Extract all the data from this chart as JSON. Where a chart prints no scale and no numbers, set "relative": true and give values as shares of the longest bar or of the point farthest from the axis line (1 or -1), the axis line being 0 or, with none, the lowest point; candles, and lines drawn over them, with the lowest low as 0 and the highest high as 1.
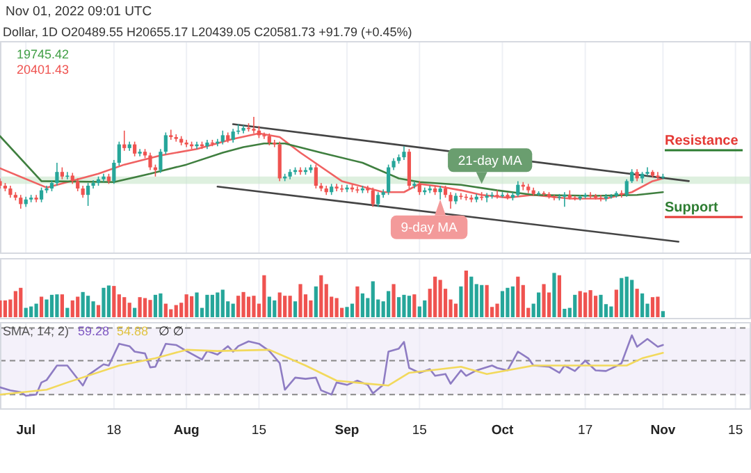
{
  "chart_data": [
    {
      "type": "candlestick",
      "title": "Nov 01, 2022 09:01 UTC",
      "subtitle": "Dollar, 1D  O20489.55  H20655.17  L20439.05  C20581.73  +91.79 (+0.45%)",
      "relative": true,
      "grid": "x",
      "tick_labels": false,
      "xlim": [
        "2022-06-26",
        "2022-11-18"
      ],
      "xticks": [
        {
          "value": "2022-07-01",
          "label": null
        },
        {
          "value": "2022-07-18",
          "label": null
        },
        {
          "value": "2022-08-01",
          "label": null
        },
        {
          "value": "2022-08-15",
          "label": null
        },
        {
          "value": "2022-09-01",
          "label": null
        },
        {
          "value": "2022-09-15",
          "label": null
        },
        {
          "value": "2022-10-01",
          "label": null
        },
        {
          "value": "2022-10-17",
          "label": null
        },
        {
          "value": "2022-11-01",
          "label": null
        },
        {
          "value": "2022-11-15",
          "label": null
        }
      ],
      "x": [
        "2022-06-26",
        "2022-06-27",
        "2022-06-28",
        "2022-06-29",
        "2022-06-30",
        "2022-07-01",
        "2022-07-02",
        "2022-07-03",
        "2022-07-04",
        "2022-07-05",
        "2022-07-06",
        "2022-07-07",
        "2022-07-08",
        "2022-07-09",
        "2022-07-10",
        "2022-07-11",
        "2022-07-12",
        "2022-07-13",
        "2022-07-14",
        "2022-07-15",
        "2022-07-16",
        "2022-07-17",
        "2022-07-18",
        "2022-07-19",
        "2022-07-20",
        "2022-07-21",
        "2022-07-22",
        "2022-07-23",
        "2022-07-24",
        "2022-07-25",
        "2022-07-26",
        "2022-07-27",
        "2022-07-28",
        "2022-07-29",
        "2022-07-30",
        "2022-07-31",
        "2022-08-01",
        "2022-08-02",
        "2022-08-03",
        "2022-08-04",
        "2022-08-05",
        "2022-08-06",
        "2022-08-07",
        "2022-08-08",
        "2022-08-09",
        "2022-08-10",
        "2022-08-11",
        "2022-08-12",
        "2022-08-13",
        "2022-08-14",
        "2022-08-15",
        "2022-08-16",
        "2022-08-17",
        "2022-08-18",
        "2022-08-19",
        "2022-08-20",
        "2022-08-21",
        "2022-08-22",
        "2022-08-23",
        "2022-08-24",
        "2022-08-25",
        "2022-08-26",
        "2022-08-27",
        "2022-08-28",
        "2022-08-29",
        "2022-08-30",
        "2022-08-31",
        "2022-09-01",
        "2022-09-02",
        "2022-09-03",
        "2022-09-04",
        "2022-09-05",
        "2022-09-06",
        "2022-09-07",
        "2022-09-08",
        "2022-09-09",
        "2022-09-10",
        "2022-09-11",
        "2022-09-12",
        "2022-09-13",
        "2022-09-14",
        "2022-09-15",
        "2022-09-16",
        "2022-09-17",
        "2022-09-18",
        "2022-09-19",
        "2022-09-20",
        "2022-09-21",
        "2022-09-22",
        "2022-09-23",
        "2022-09-24",
        "2022-09-25",
        "2022-09-26",
        "2022-09-27",
        "2022-09-28",
        "2022-09-29",
        "2022-09-30",
        "2022-10-01",
        "2022-10-02",
        "2022-10-03",
        "2022-10-04",
        "2022-10-05",
        "2022-10-06",
        "2022-10-07",
        "2022-10-08",
        "2022-10-09",
        "2022-10-10",
        "2022-10-11",
        "2022-10-12",
        "2022-10-13",
        "2022-10-14",
        "2022-10-15",
        "2022-10-16",
        "2022-10-17",
        "2022-10-18",
        "2022-10-19",
        "2022-10-20",
        "2022-10-21",
        "2022-10-22",
        "2022-10-23",
        "2022-10-24",
        "2022-10-25",
        "2022-10-26",
        "2022-10-27",
        "2022-10-28",
        "2022-10-29",
        "2022-10-30",
        "2022-10-31",
        "2022-11-01"
      ],
      "ohlc": [
        [
          0.3,
          0.33,
          0.22,
          0.25
        ],
        [
          0.25,
          0.28,
          0.19,
          0.22
        ],
        [
          0.22,
          0.25,
          0.12,
          0.15
        ],
        [
          0.15,
          0.18,
          0.09,
          0.12
        ],
        [
          0.12,
          0.15,
          0,
          0.05
        ],
        [
          0.05,
          0.13,
          0.02,
          0.1
        ],
        [
          0.1,
          0.15,
          0.07,
          0.12
        ],
        [
          0.12,
          0.15,
          0.07,
          0.1
        ],
        [
          0.1,
          0.23,
          0.07,
          0.2
        ],
        [
          0.2,
          0.25,
          0.17,
          0.22
        ],
        [
          0.22,
          0.31,
          0.19,
          0.28
        ],
        [
          0.28,
          0.5,
          0.25,
          0.4
        ],
        [
          0.4,
          0.45,
          0.32,
          0.35
        ],
        [
          0.35,
          0.4,
          0.32,
          0.36
        ],
        [
          0.36,
          0.39,
          0.27,
          0.3
        ],
        [
          0.3,
          0.33,
          0.19,
          0.22
        ],
        [
          0.22,
          0.25,
          0.12,
          0.15
        ],
        [
          0.15,
          0.28,
          0.03,
          0.25
        ],
        [
          0.25,
          0.31,
          0.22,
          0.28
        ],
        [
          0.28,
          0.35,
          0.25,
          0.32
        ],
        [
          0.32,
          0.38,
          0.29,
          0.35
        ],
        [
          0.35,
          0.38,
          0.27,
          0.3
        ],
        [
          0.3,
          0.53,
          0.27,
          0.5
        ],
        [
          0.5,
          0.73,
          0.47,
          0.7
        ],
        [
          0.7,
          0.85,
          0.63,
          0.66
        ],
        [
          0.66,
          0.73,
          0.63,
          0.7
        ],
        [
          0.7,
          0.73,
          0.57,
          0.6
        ],
        [
          0.6,
          0.65,
          0.57,
          0.62
        ],
        [
          0.62,
          0.65,
          0.55,
          0.58
        ],
        [
          0.58,
          0.61,
          0.42,
          0.45
        ],
        [
          0.45,
          0.48,
          0.35,
          0.42
        ],
        [
          0.42,
          0.65,
          0.39,
          0.62
        ],
        [
          0.62,
          0.83,
          0.59,
          0.8
        ],
        [
          0.8,
          0.86,
          0.75,
          0.78
        ],
        [
          0.78,
          0.81,
          0.73,
          0.76
        ],
        [
          0.76,
          0.79,
          0.69,
          0.72
        ],
        [
          0.72,
          0.75,
          0.67,
          0.7
        ],
        [
          0.7,
          0.73,
          0.65,
          0.68
        ],
        [
          0.68,
          0.73,
          0.65,
          0.7
        ],
        [
          0.7,
          0.73,
          0.65,
          0.68
        ],
        [
          0.68,
          0.75,
          0.65,
          0.72
        ],
        [
          0.72,
          0.75,
          0.68,
          0.71
        ],
        [
          0.71,
          0.76,
          0.68,
          0.73
        ],
        [
          0.73,
          0.85,
          0.7,
          0.8
        ],
        [
          0.8,
          0.83,
          0.72,
          0.75
        ],
        [
          0.75,
          0.87,
          0.72,
          0.84
        ],
        [
          0.84,
          0.92,
          0.81,
          0.85
        ],
        [
          0.85,
          0.91,
          0.82,
          0.88
        ],
        [
          0.88,
          0.93,
          0.84,
          0.87
        ],
        [
          0.87,
          1,
          0.82,
          0.85
        ],
        [
          0.85,
          0.9,
          0.77,
          0.8
        ],
        [
          0.8,
          0.83,
          0.76,
          0.79
        ],
        [
          0.79,
          0.82,
          0.69,
          0.72
        ],
        [
          0.72,
          0.75,
          0.67,
          0.7
        ],
        [
          0.7,
          0.73,
          0.3,
          0.33
        ],
        [
          0.33,
          0.38,
          0.3,
          0.35
        ],
        [
          0.35,
          0.43,
          0.32,
          0.4
        ],
        [
          0.4,
          0.45,
          0.37,
          0.42
        ],
        [
          0.42,
          0.45,
          0.37,
          0.4
        ],
        [
          0.4,
          0.45,
          0.37,
          0.42
        ],
        [
          0.42,
          0.48,
          0.39,
          0.45
        ],
        [
          0.45,
          0.48,
          0.22,
          0.25
        ],
        [
          0.25,
          0.28,
          0.19,
          0.22
        ],
        [
          0.22,
          0.25,
          0.15,
          0.18
        ],
        [
          0.18,
          0.27,
          0.15,
          0.24
        ],
        [
          0.24,
          0.27,
          0.19,
          0.22
        ],
        [
          0.22,
          0.26,
          0.18,
          0.21
        ],
        [
          0.21,
          0.26,
          0.18,
          0.23
        ],
        [
          0.23,
          0.26,
          0.18,
          0.21
        ],
        [
          0.21,
          0.24,
          0.17,
          0.2
        ],
        [
          0.2,
          0.25,
          0.17,
          0.22
        ],
        [
          0.22,
          0.25,
          0.17,
          0.2
        ],
        [
          0.2,
          0.23,
          0.02,
          0.05
        ],
        [
          0.05,
          0.18,
          0.02,
          0.15
        ],
        [
          0.15,
          0.21,
          0.12,
          0.18
        ],
        [
          0.18,
          0.48,
          0.15,
          0.45
        ],
        [
          0.45,
          0.55,
          0.42,
          0.52
        ],
        [
          0.52,
          0.59,
          0.49,
          0.56
        ],
        [
          0.56,
          0.68,
          0.53,
          0.62
        ],
        [
          0.62,
          0.65,
          0.22,
          0.25
        ],
        [
          0.25,
          0.3,
          0.22,
          0.27
        ],
        [
          0.27,
          0.3,
          0.15,
          0.18
        ],
        [
          0.18,
          0.23,
          0.15,
          0.2
        ],
        [
          0.2,
          0.25,
          0.17,
          0.22
        ],
        [
          0.22,
          0.25,
          0.15,
          0.18
        ],
        [
          0.18,
          0.25,
          0.1,
          0.22
        ],
        [
          0.22,
          0.25,
          0.12,
          0.15
        ],
        [
          0.15,
          0.18,
          0,
          0.08
        ],
        [
          0.08,
          0.17,
          0.05,
          0.14
        ],
        [
          0.14,
          0.17,
          0.1,
          0.13
        ],
        [
          0.13,
          0.16,
          0.09,
          0.12
        ],
        [
          0.12,
          0.15,
          0.07,
          0.1
        ],
        [
          0.1,
          0.16,
          0.07,
          0.13
        ],
        [
          0.13,
          0.18,
          0.09,
          0.12
        ],
        [
          0.12,
          0.17,
          0.07,
          0.14
        ],
        [
          0.14,
          0.18,
          0.11,
          0.15
        ],
        [
          0.15,
          0.2,
          0.11,
          0.14
        ],
        [
          0.14,
          0.18,
          0.12,
          0.15
        ],
        [
          0.15,
          0.17,
          0.1,
          0.12
        ],
        [
          0.12,
          0.18,
          0.09,
          0.15
        ],
        [
          0.15,
          0.3,
          0.13,
          0.26
        ],
        [
          0.26,
          0.29,
          0.2,
          0.24
        ],
        [
          0.24,
          0.27,
          0.17,
          0.2
        ],
        [
          0.2,
          0.23,
          0.14,
          0.16
        ],
        [
          0.16,
          0.19,
          0.14,
          0.17
        ],
        [
          0.17,
          0.19,
          0.14,
          0.16
        ],
        [
          0.16,
          0.18,
          0.11,
          0.13
        ],
        [
          0.13,
          0.15,
          0.09,
          0.12
        ],
        [
          0.12,
          0.16,
          0.09,
          0.13
        ],
        [
          0.13,
          0.18,
          0.02,
          0.15
        ],
        [
          0.15,
          0.2,
          0.1,
          0.12
        ],
        [
          0.12,
          0.14,
          0.09,
          0.11
        ],
        [
          0.11,
          0.15,
          0.09,
          0.13
        ],
        [
          0.13,
          0.17,
          0.11,
          0.15
        ],
        [
          0.15,
          0.18,
          0.11,
          0.14
        ],
        [
          0.14,
          0.16,
          0.1,
          0.12
        ],
        [
          0.12,
          0.15,
          0.08,
          0.11
        ],
        [
          0.11,
          0.16,
          0.08,
          0.13
        ],
        [
          0.13,
          0.16,
          0.11,
          0.14
        ],
        [
          0.14,
          0.19,
          0.12,
          0.17
        ],
        [
          0.17,
          0.2,
          0.12,
          0.15
        ],
        [
          0.15,
          0.32,
          0.13,
          0.3
        ],
        [
          0.3,
          0.43,
          0.28,
          0.4
        ],
        [
          0.4,
          0.43,
          0.3,
          0.33
        ],
        [
          0.33,
          0.4,
          0.28,
          0.38
        ],
        [
          0.38,
          0.45,
          0.36,
          0.4
        ],
        [
          0.4,
          0.42,
          0.34,
          0.36
        ],
        [
          0.36,
          0.4,
          0.32,
          0.34
        ],
        [
          0.34,
          0.38,
          0.32,
          0.35
        ]
      ],
      "colors": [
        "#ef5350",
        "#ef5350",
        "#ef5350",
        "#ef5350",
        "#ef5350",
        "#26a69a",
        "#26a69a",
        "#ef5350",
        "#26a69a",
        "#26a69a",
        "#26a69a",
        "#26a69a",
        "#ef5350",
        "#26a69a",
        "#ef5350",
        "#ef5350",
        "#ef5350",
        "#26a69a",
        "#26a69a",
        "#26a69a",
        "#26a69a",
        "#ef5350",
        "#26a69a",
        "#26a69a",
        "#ef5350",
        "#26a69a",
        "#ef5350",
        "#26a69a",
        "#ef5350",
        "#ef5350",
        "#ef5350",
        "#26a69a",
        "#26a69a",
        "#ef5350",
        "#ef5350",
        "#ef5350",
        "#ef5350",
        "#ef5350",
        "#26a69a",
        "#ef5350",
        "#26a69a",
        "#ef5350",
        "#26a69a",
        "#26a69a",
        "#ef5350",
        "#26a69a",
        "#26a69a",
        "#26a69a",
        "#ef5350",
        "#ef5350",
        "#ef5350",
        "#ef5350",
        "#ef5350",
        "#ef5350",
        "#ef5350",
        "#26a69a",
        "#26a69a",
        "#26a69a",
        "#ef5350",
        "#26a69a",
        "#26a69a",
        "#ef5350",
        "#ef5350",
        "#ef5350",
        "#26a69a",
        "#ef5350",
        "#ef5350",
        "#26a69a",
        "#ef5350",
        "#ef5350",
        "#26a69a",
        "#ef5350",
        "#ef5350",
        "#26a69a",
        "#26a69a",
        "#26a69a",
        "#26a69a",
        "#26a69a",
        "#26a69a",
        "#ef5350",
        "#26a69a",
        "#ef5350",
        "#26a69a",
        "#26a69a",
        "#ef5350",
        "#26a69a",
        "#ef5350",
        "#ef5350",
        "#26a69a",
        "#ef5350",
        "#ef5350",
        "#ef5350",
        "#26a69a",
        "#ef5350",
        "#26a69a",
        "#26a69a",
        "#ef5350",
        "#26a69a",
        "#ef5350",
        "#26a69a",
        "#26a69a",
        "#ef5350",
        "#ef5350",
        "#ef5350",
        "#26a69a",
        "#ef5350",
        "#ef5350",
        "#ef5350",
        "#26a69a",
        "#26a69a",
        "#ef5350",
        "#ef5350",
        "#26a69a",
        "#26a69a",
        "#ef5350",
        "#ef5350",
        "#ef5350",
        "#26a69a",
        "#26a69a",
        "#26a69a",
        "#ef5350",
        "#26a69a",
        "#26a69a",
        "#ef5350",
        "#26a69a",
        "#26a69a",
        "#ef5350",
        "#ef5350",
        "#26a69a"
      ],
      "series": [
        {
          "type": "line",
          "color": "#f06262",
          "x": [
            "2022-06-26",
            "2022-07-05",
            "2022-07-15",
            "2022-07-20",
            "2022-07-27",
            "2022-08-03",
            "2022-08-10",
            "2022-08-15",
            "2022-08-19",
            "2022-08-23",
            "2022-08-31",
            "2022-09-08",
            "2022-09-12",
            "2022-09-15",
            "2022-09-19",
            "2022-09-23",
            "2022-09-27",
            "2022-10-02",
            "2022-10-07",
            "2022-10-14",
            "2022-10-21",
            "2022-10-26",
            "2022-10-30",
            "2022-11-01"
          ],
          "values": [
            0.44,
            0.23,
            0.38,
            0.48,
            0.58,
            0.65,
            0.76,
            0.82,
            0.78,
            0.61,
            0.3,
            0.18,
            0.18,
            0.27,
            0.24,
            0.2,
            0.15,
            0.12,
            0.15,
            0.11,
            0.11,
            0.18,
            0.3,
            0.33
          ]
        },
        {
          "type": "line",
          "color": "#3f7f3f",
          "x": [
            "2022-06-26",
            "2022-07-04",
            "2022-07-18",
            "2022-07-25",
            "2022-08-01",
            "2022-08-08",
            "2022-08-12",
            "2022-08-16",
            "2022-08-20",
            "2022-08-27",
            "2022-09-04",
            "2022-09-11",
            "2022-09-15",
            "2022-09-23",
            "2022-09-30",
            "2022-10-07",
            "2022-10-19",
            "2022-10-27",
            "2022-11-01"
          ],
          "values": [
            0.79,
            0.3,
            0.29,
            0.38,
            0.48,
            0.61,
            0.67,
            0.71,
            0.71,
            0.61,
            0.5,
            0.33,
            0.29,
            0.26,
            0.2,
            0.15,
            0.14,
            0.15,
            0.18
          ]
        },
        {
          "type": "line",
          "color": "#444444",
          "x": [
            "2022-08-10",
            "2022-11-06"
          ],
          "values": [
            0.92,
            0.3
          ]
        },
        {
          "type": "line",
          "color": "#444444",
          "x": [
            "2022-08-07",
            "2022-11-04"
          ],
          "values": [
            0.24,
            -0.36
          ]
        }
      ],
      "bands": [
        {
          "axis": "y",
          "from": 0.27,
          "to": 0.35,
          "color": "#c8e6c9"
        }
      ],
      "annotations": [
        "19745.42",
        "20401.43",
        {
          "text": "21-day MA",
          "x": "2022-09-27",
          "y": 0.27
        },
        {
          "text": "9-day MA",
          "x": "2022-09-19",
          "y": 0.1
        },
        "Resistance",
        "Support"
      ]
    },
    {
      "type": "bar",
      "relative": true,
      "grid": "x",
      "tick_labels": false,
      "xlim": [
        "2022-06-26",
        "2022-11-18"
      ],
      "xticks": [
        {
          "value": "2022-07-01",
          "label": null
        },
        {
          "value": "2022-07-18",
          "label": null
        },
        {
          "value": "2022-08-01",
          "label": null
        },
        {
          "value": "2022-08-15",
          "label": null
        },
        {
          "value": "2022-09-01",
          "label": null
        },
        {
          "value": "2022-09-15",
          "label": null
        },
        {
          "value": "2022-10-01",
          "label": null
        },
        {
          "value": "2022-10-17",
          "label": null
        },
        {
          "value": "2022-11-01",
          "label": null
        },
        {
          "value": "2022-11-15",
          "label": null
        }
      ],
      "x": [
        "2022-06-26",
        "2022-06-27",
        "2022-06-28",
        "2022-06-29",
        "2022-06-30",
        "2022-07-01",
        "2022-07-02",
        "2022-07-03",
        "2022-07-04",
        "2022-07-05",
        "2022-07-06",
        "2022-07-07",
        "2022-07-08",
        "2022-07-09",
        "2022-07-10",
        "2022-07-11",
        "2022-07-12",
        "2022-07-13",
        "2022-07-14",
        "2022-07-15",
        "2022-07-16",
        "2022-07-17",
        "2022-07-18",
        "2022-07-19",
        "2022-07-20",
        "2022-07-21",
        "2022-07-22",
        "2022-07-23",
        "2022-07-24",
        "2022-07-25",
        "2022-07-26",
        "2022-07-27",
        "2022-07-28",
        "2022-07-29",
        "2022-07-30",
        "2022-07-31",
        "2022-08-01",
        "2022-08-02",
        "2022-08-03",
        "2022-08-04",
        "2022-08-05",
        "2022-08-06",
        "2022-08-07",
        "2022-08-08",
        "2022-08-09",
        "2022-08-10",
        "2022-08-11",
        "2022-08-12",
        "2022-08-13",
        "2022-08-14",
        "2022-08-15",
        "2022-08-16",
        "2022-08-17",
        "2022-08-18",
        "2022-08-19",
        "2022-08-20",
        "2022-08-21",
        "2022-08-22",
        "2022-08-23",
        "2022-08-24",
        "2022-08-25",
        "2022-08-26",
        "2022-08-27",
        "2022-08-28",
        "2022-08-29",
        "2022-08-30",
        "2022-08-31",
        "2022-09-01",
        "2022-09-02",
        "2022-09-03",
        "2022-09-04",
        "2022-09-05",
        "2022-09-06",
        "2022-09-07",
        "2022-09-08",
        "2022-09-09",
        "2022-09-10",
        "2022-09-11",
        "2022-09-12",
        "2022-09-13",
        "2022-09-14",
        "2022-09-15",
        "2022-09-16",
        "2022-09-17",
        "2022-09-18",
        "2022-09-19",
        "2022-09-20",
        "2022-09-21",
        "2022-09-22",
        "2022-09-23",
        "2022-09-24",
        "2022-09-25",
        "2022-09-26",
        "2022-09-27",
        "2022-09-28",
        "2022-09-29",
        "2022-09-30",
        "2022-10-01",
        "2022-10-02",
        "2022-10-03",
        "2022-10-04",
        "2022-10-05",
        "2022-10-06",
        "2022-10-07",
        "2022-10-08",
        "2022-10-09",
        "2022-10-10",
        "2022-10-11",
        "2022-10-12",
        "2022-10-13",
        "2022-10-14",
        "2022-10-15",
        "2022-10-16",
        "2022-10-17",
        "2022-10-18",
        "2022-10-19",
        "2022-10-20",
        "2022-10-21",
        "2022-10-22",
        "2022-10-23",
        "2022-10-24",
        "2022-10-25",
        "2022-10-26",
        "2022-10-27",
        "2022-10-28",
        "2022-10-29",
        "2022-10-30",
        "2022-10-31",
        "2022-11-01"
      ],
      "values": [
        0.36,
        0.36,
        0.38,
        0.56,
        0.63,
        0.2,
        0.23,
        0.29,
        0.44,
        0.38,
        0.48,
        0.49,
        0.49,
        0.2,
        0.36,
        0.44,
        0.54,
        0.46,
        0.34,
        0.26,
        0.63,
        0.68,
        0.67,
        0.49,
        0.43,
        0.31,
        0.2,
        0.43,
        0.41,
        0.37,
        0.48,
        0.51,
        0.29,
        0.17,
        0.26,
        0.31,
        0.49,
        0.45,
        0.53,
        0.2,
        0.48,
        0.48,
        0.53,
        0.59,
        0.34,
        0.29,
        0.46,
        0.54,
        0.44,
        0.46,
        0.29,
        0.9,
        0.44,
        0.36,
        0.53,
        0.46,
        0.46,
        0.34,
        0.71,
        0.49,
        0.36,
        0.66,
        0.9,
        0.71,
        0.44,
        0.41,
        0.2,
        0.22,
        0.29,
        0.66,
        0.51,
        0.41,
        0.77,
        0.38,
        0.34,
        0.56,
        0.71,
        0.43,
        0.48,
        0.46,
        0.49,
        0.23,
        0.36,
        0.61,
        0.87,
        0.8,
        0.61,
        0.38,
        0.29,
        0.66,
        1.0,
        0.87,
        0.71,
        0.69,
        0.69,
        0.22,
        0.29,
        0.56,
        0.63,
        0.66,
        0.87,
        0.69,
        0.2,
        0.29,
        0.53,
        0.71,
        0.53,
        0.95,
        0.9,
        0.18,
        0.2,
        0.48,
        0.56,
        0.53,
        0.58,
        0.46,
        0.48,
        0.28,
        0.23,
        0.59,
        0.84,
        0.87,
        0.8,
        0.61,
        0.51,
        0.29,
        0.43,
        0.44,
        0.13
      ],
      "colors": [
        "#ef5350",
        "#ef5350",
        "#ef5350",
        "#ef5350",
        "#ef5350",
        "#26a69a",
        "#26a69a",
        "#26a69a",
        "#ef5350",
        "#26a69a",
        "#26a69a",
        "#26a69a",
        "#ef5350",
        "#26a69a",
        "#ef5350",
        "#ef5350",
        "#26a69a",
        "#26a69a",
        "#26a69a",
        "#ef5350",
        "#26a69a",
        "#26a69a",
        "#ef5350",
        "#ef5350",
        "#ef5350",
        "#ef5350",
        "#26a69a",
        "#ef5350",
        "#ef5350",
        "#ef5350",
        "#26a69a",
        "#26a69a",
        "#ef5350",
        "#ef5350",
        "#ef5350",
        "#ef5350",
        "#ef5350",
        "#ef5350",
        "#26a69a",
        "#26a69a",
        "#26a69a",
        "#26a69a",
        "#26a69a",
        "#26a69a",
        "#26a69a",
        "#26a69a",
        "#ef5350",
        "#ef5350",
        "#ef5350",
        "#ef5350",
        "#ef5350",
        "#ef5350",
        "#26a69a",
        "#26a69a",
        "#ef5350",
        "#ef5350",
        "#ef5350",
        "#26a69a",
        "#ef5350",
        "#ef5350",
        "#ef5350",
        "#26a69a",
        "#ef5350",
        "#ef5350",
        "#ef5350",
        "#ef5350",
        "#ef5350",
        "#26a69a",
        "#26a69a",
        "#ef5350",
        "#26a69a",
        "#26a69a",
        "#26a69a",
        "#26a69a",
        "#26a69a",
        "#26a69a",
        "#ef5350",
        "#26a69a",
        "#26a69a",
        "#26a69a",
        "#ef5350",
        "#26a69a",
        "#26a69a",
        "#ef5350",
        "#ef5350",
        "#ef5350",
        "#ef5350",
        "#ef5350",
        "#ef5350",
        "#26a69a",
        "#ef5350",
        "#26a69a",
        "#26a69a",
        "#26a69a",
        "#ef5350",
        "#ef5350",
        "#ef5350",
        "#26a69a",
        "#26a69a",
        "#26a69a",
        "#ef5350",
        "#ef5350",
        "#ef5350",
        "#26a69a",
        "#26a69a",
        "#ef5350",
        "#ef5350",
        "#26a69a",
        "#ef5350",
        "#26a69a",
        "#26a69a",
        "#26a69a",
        "#ef5350",
        "#ef5350",
        "#ef5350",
        "#ef5350",
        "#26a69a",
        "#26a69a",
        "#26a69a",
        "#ef5350",
        "#26a69a",
        "#26a69a",
        "#26a69a",
        "#ef5350",
        "#26a69a",
        "#26a69a",
        "#ef5350",
        "#ef5350",
        "#26a69a"
      ]
    },
    {
      "type": "line",
      "relative": true,
      "grid": "x",
      "tick_labels": "x",
      "xlim": [
        "2022-06-26",
        "2022-11-18"
      ],
      "xticks": [
        {
          "value": "2022-07-01",
          "label": "Jul"
        },
        {
          "value": "2022-07-18",
          "label": "18"
        },
        {
          "value": "2022-08-01",
          "label": "Aug"
        },
        {
          "value": "2022-08-15",
          "label": "15"
        },
        {
          "value": "2022-09-01",
          "label": "Sep"
        },
        {
          "value": "2022-09-15",
          "label": "15"
        },
        {
          "value": "2022-10-01",
          "label": "Oct"
        },
        {
          "value": "2022-10-17",
          "label": "17"
        },
        {
          "value": "2022-11-01",
          "label": "Nov"
        },
        {
          "value": "2022-11-15",
          "label": "15"
        }
      ],
      "bands": [
        {
          "axis": "y",
          "from": 0.02,
          "to": 1.12,
          "color": "#ede7f6"
        }
      ],
      "ref_lines": [
        {
          "axis": "y",
          "value": 1.12,
          "line_style": "dashed",
          "color": "#888888"
        },
        {
          "axis": "y",
          "value": 0.58,
          "line_style": "dashed",
          "color": "#888888"
        },
        {
          "axis": "y",
          "value": 0.02,
          "line_style": "dashed",
          "color": "#888888"
        }
      ],
      "series": [
        {
          "color": "#8e7cc3",
          "x": [
            "2022-06-26",
            "2022-06-28",
            "2022-06-30",
            "2022-07-01",
            "2022-07-03",
            "2022-07-04",
            "2022-07-05",
            "2022-07-07",
            "2022-07-09",
            "2022-07-12",
            "2022-07-13",
            "2022-07-16",
            "2022-07-17",
            "2022-07-19",
            "2022-07-21",
            "2022-07-22",
            "2022-07-24",
            "2022-07-25",
            "2022-07-26",
            "2022-07-28",
            "2022-07-30",
            "2022-08-01",
            "2022-08-04",
            "2022-08-05",
            "2022-08-07",
            "2022-08-09",
            "2022-08-10",
            "2022-08-11",
            "2022-08-13",
            "2022-08-15",
            "2022-08-17",
            "2022-08-19",
            "2022-08-20",
            "2022-08-22",
            "2022-08-24",
            "2022-08-26",
            "2022-08-27",
            "2022-08-29",
            "2022-08-30",
            "2022-09-01",
            "2022-09-03",
            "2022-09-05",
            "2022-09-06",
            "2022-09-08",
            "2022-09-09",
            "2022-09-11",
            "2022-09-12",
            "2022-09-13",
            "2022-09-15",
            "2022-09-17",
            "2022-09-18",
            "2022-09-20",
            "2022-09-21",
            "2022-09-23",
            "2022-09-24",
            "2022-09-26",
            "2022-09-29",
            "2022-09-30",
            "2022-10-02",
            "2022-10-04",
            "2022-10-06",
            "2022-10-07",
            "2022-10-10",
            "2022-10-12",
            "2022-10-13",
            "2022-10-15",
            "2022-10-17",
            "2022-10-19",
            "2022-10-21",
            "2022-10-23",
            "2022-10-24",
            "2022-10-26",
            "2022-10-27",
            "2022-10-29",
            "2022-10-31",
            "2022-11-01"
          ],
          "values": [
            0.14,
            0.09,
            0.06,
            0,
            0.02,
            0.22,
            0.26,
            0.5,
            0.5,
            0.17,
            0.34,
            0.52,
            0.5,
            0.86,
            0.82,
            0.73,
            0.7,
            0.47,
            0.48,
            0.86,
            0.84,
            0.74,
            0.6,
            0.74,
            0.68,
            0.82,
            0.73,
            0.82,
            0.9,
            0.86,
            0.74,
            0.54,
            0.1,
            0.3,
            0.28,
            0.3,
            0.09,
            0.02,
            0.22,
            0.18,
            0.25,
            0.18,
            0.04,
            0.18,
            0.73,
            0.78,
            0.89,
            0.46,
            0.38,
            0.44,
            0.33,
            0.36,
            0.2,
            0.42,
            0.33,
            0.42,
            0.5,
            0.46,
            0.42,
            0.73,
            0.62,
            0.5,
            0.48,
            0.38,
            0.5,
            0.41,
            0.58,
            0.42,
            0.41,
            0.49,
            0.54,
            1.0,
            0.81,
            0.94,
            0.81,
            0.84
          ]
        },
        {
          "color": "#f2d95c",
          "x": [
            "2022-06-26",
            "2022-07-05",
            "2022-07-09",
            "2022-07-19",
            "2022-07-26",
            "2022-08-01",
            "2022-08-07",
            "2022-08-17",
            "2022-08-24",
            "2022-08-30",
            "2022-09-05",
            "2022-09-09",
            "2022-09-13",
            "2022-09-23",
            "2022-09-28",
            "2022-10-07",
            "2022-10-17",
            "2022-10-25",
            "2022-10-28",
            "2022-11-01"
          ],
          "values": [
            0.02,
            0.1,
            0.22,
            0.5,
            0.62,
            0.76,
            0.74,
            0.76,
            0.5,
            0.25,
            0.2,
            0.17,
            0.38,
            0.48,
            0.36,
            0.5,
            0.5,
            0.5,
            0.62,
            0.71
          ]
        }
      ],
      "annotations": [
        "SMA; 14; 2)",
        "59.28",
        "54.88",
        "∅  ∅"
      ]
    }
  ]
}
